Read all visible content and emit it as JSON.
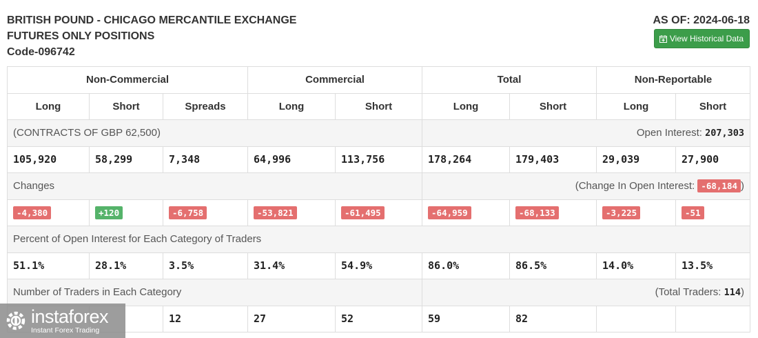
{
  "header": {
    "title_line1": "BRITISH POUND - CHICAGO MERCANTILE EXCHANGE",
    "title_line2": "FUTURES ONLY POSITIONS",
    "title_line3": "Code-096742",
    "as_of": "AS OF: 2024-06-18",
    "history_button": "View Historical Data",
    "history_icon": "calendar-plus-icon"
  },
  "table": {
    "groups": [
      "Non-Commercial",
      "Commercial",
      "Total",
      "Non-Reportable"
    ],
    "columns": [
      "Long",
      "Short",
      "Spreads",
      "Long",
      "Short",
      "Long",
      "Short",
      "Long",
      "Short"
    ],
    "contracts_label": "(CONTRACTS OF GBP 62,500)",
    "open_interest_label": "Open Interest:",
    "open_interest_value": "207,303",
    "positions": [
      "105,920",
      "58,299",
      "7,348",
      "64,996",
      "113,756",
      "178,264",
      "179,403",
      "29,039",
      "27,900"
    ],
    "changes_label": "Changes",
    "change_oi_label": "(Change In Open Interest:",
    "change_oi_value": "-68,184",
    "change_oi_close": ")",
    "changes": [
      {
        "value": "-4,380",
        "sign": "neg"
      },
      {
        "value": "+120",
        "sign": "pos"
      },
      {
        "value": "-6,758",
        "sign": "neg"
      },
      {
        "value": "-53,821",
        "sign": "neg"
      },
      {
        "value": "-61,495",
        "sign": "neg"
      },
      {
        "value": "-64,959",
        "sign": "neg"
      },
      {
        "value": "-68,133",
        "sign": "neg"
      },
      {
        "value": "-3,225",
        "sign": "neg"
      },
      {
        "value": "-51",
        "sign": "neg"
      }
    ],
    "percent_label": "Percent of Open Interest for Each Category of Traders",
    "percents": [
      "51.1%",
      "28.1%",
      "3.5%",
      "31.4%",
      "54.9%",
      "86.0%",
      "86.5%",
      "14.0%",
      "13.5%"
    ],
    "traders_label": "Number of Traders in Each Category",
    "total_traders_label": "(Total Traders:",
    "total_traders_value": "114",
    "total_traders_close": ")",
    "traders": [
      "",
      "",
      "12",
      "27",
      "52",
      "59",
      "82",
      "",
      ""
    ]
  },
  "watermark": {
    "name": "instaforex",
    "tagline": "Instant Forex Trading",
    "icon": "instaforex-logo-icon"
  },
  "colors": {
    "negative_badge": "#e46f6f",
    "positive_badge": "#55b36a",
    "button_green": "#3c9d4a",
    "row_shade": "#f5f5f5"
  }
}
